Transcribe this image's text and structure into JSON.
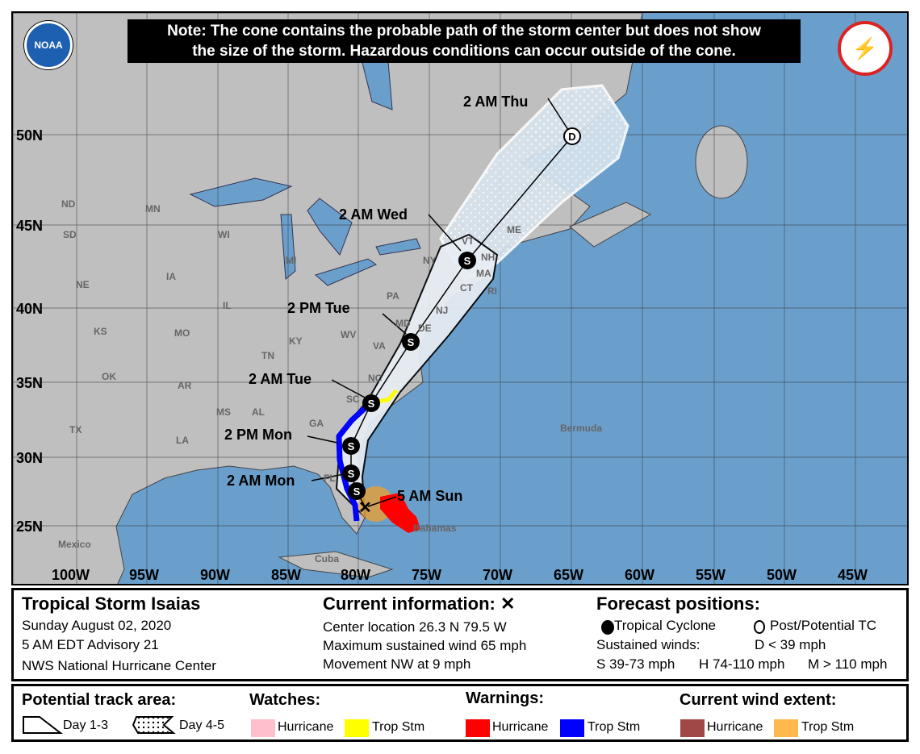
{
  "note": [
    "Note: The cone contains the probable path of the storm center but does not show",
    "the size of the storm. Hazardous conditions can occur outside of the cone."
  ],
  "logos": {
    "left": "NOAA",
    "right": "NATIONAL WEATHER SERVICE"
  },
  "longitudes": [
    "100W",
    "95W",
    "90W",
    "85W",
    "80W",
    "75W",
    "70W",
    "65W",
    "60W",
    "55W",
    "50W",
    "45W"
  ],
  "latitudes": [
    "50N",
    "45N",
    "40N",
    "35N",
    "30N",
    "25N"
  ],
  "places": [
    "ND",
    "SD",
    "MN",
    "WI",
    "MI",
    "IA",
    "NE",
    "KS",
    "IL",
    "MO",
    "OK",
    "AR",
    "TX",
    "LA",
    "MS",
    "AL",
    "TN",
    "KY",
    "GA",
    "FL",
    "SC",
    "NC",
    "VA",
    "WV",
    "PA",
    "NY",
    "MD",
    "DE",
    "NJ",
    "CT",
    "MA",
    "NH",
    "VT",
    "ME",
    "RI",
    "Bermuda",
    "Bahamas",
    "Cuba",
    "Mexico"
  ],
  "forecast_labels": [
    "2 AM Thu",
    "2 AM Wed",
    "2 PM Tue",
    "2 AM Tue",
    "2 PM Mon",
    "2 AM Mon",
    "5 AM Sun"
  ],
  "point_letters": {
    "storm": "S",
    "depression": "D"
  },
  "info": {
    "title": "Tropical Storm Isaias",
    "date": "Sunday August 02, 2020",
    "advisory": "5 AM EDT Advisory 21",
    "center": "NWS National Hurricane Center",
    "current_title": "Current information: ✕",
    "location": "Center location 26.3 N 79.5 W",
    "wind": "Maximum sustained wind 65 mph",
    "movement": "Movement NW at 9 mph",
    "forecast_title": "Forecast positions:",
    "tc": "Tropical Cyclone",
    "ptc": "Post/Potential TC",
    "sustained": "Sustained winds:",
    "d": "D < 39 mph",
    "s": "S 39-73 mph",
    "hh": "H 74-110 mph",
    "m": "M > 110 mph"
  },
  "legend": {
    "track_title": "Potential track area:",
    "day13": "Day 1-3",
    "day45": "Day 4-5",
    "watches_title": "Watches:",
    "warnings_title": "Warnings:",
    "wind_title": "Current wind extent:",
    "hurricane": "Hurricane",
    "tropstm": "Trop Stm"
  },
  "colors": {
    "ocean": "#6b9fcb",
    "land": "#bfbfbf",
    "hurricane_watch": "#ffc0cb",
    "ts_watch": "#ffff00",
    "hurricane_warning": "#ff0000",
    "ts_warning": "#0000ff",
    "hurricane_wind": "#a04848",
    "ts_wind": "#ffb84d"
  }
}
